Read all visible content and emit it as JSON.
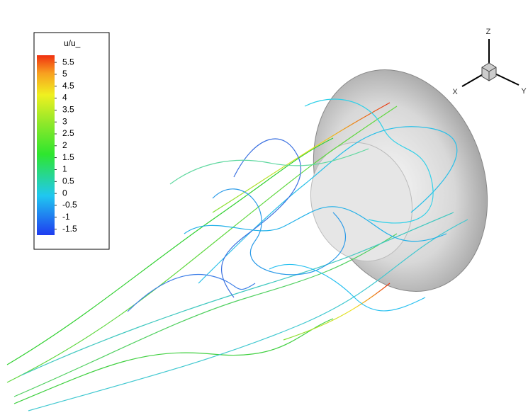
{
  "colorbar": {
    "title": "u/u_",
    "range": [
      -1.75,
      5.8
    ],
    "ticks": [
      5.5,
      5,
      4.5,
      4,
      3.5,
      3,
      2.5,
      2,
      1.5,
      1,
      0.5,
      0,
      -0.5,
      -1,
      -1.5
    ]
  },
  "axes": {
    "z": "Z",
    "x": "X",
    "y": "Y"
  }
}
